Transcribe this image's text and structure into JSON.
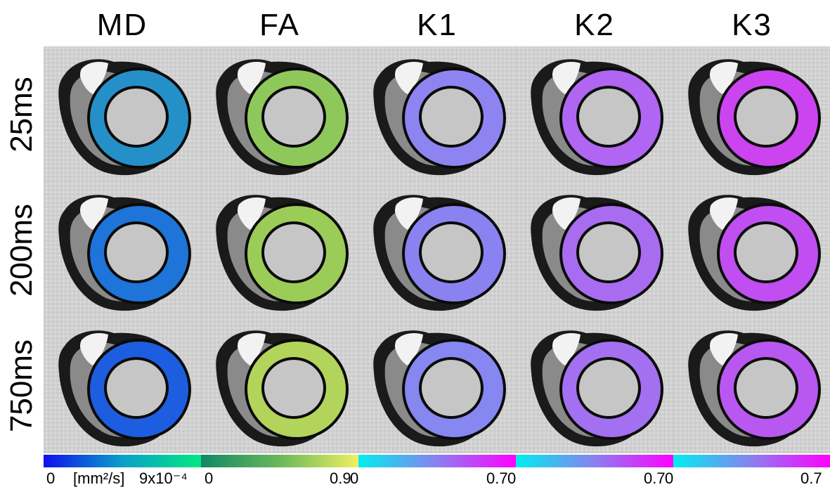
{
  "columns": [
    {
      "title": "MD"
    },
    {
      "title": "FA"
    },
    {
      "title": "K1"
    },
    {
      "title": "K2"
    },
    {
      "title": "K3"
    }
  ],
  "rows": [
    {
      "label": "25ms"
    },
    {
      "label": "200ms"
    },
    {
      "label": "750ms"
    }
  ],
  "colorbars": [
    {
      "min_label": "0",
      "unit_label": "[mm²/s]",
      "max_label": "9x10⁻⁴",
      "colors": [
        "#1010ee",
        "#0aa0c8",
        "#00e882"
      ]
    },
    {
      "min_label": "0",
      "max_label": "0.9",
      "colors": [
        "#118866",
        "#6ab85a",
        "#f0f060"
      ]
    },
    {
      "min_label": "0",
      "max_label": "0.7",
      "colors": [
        "#00eeee",
        "#8a80f0",
        "#ff00ff"
      ]
    },
    {
      "min_label": "0",
      "max_label": "0.7",
      "colors": [
        "#00eeee",
        "#8a80f0",
        "#ff00ff"
      ]
    },
    {
      "min_label": "0",
      "max_label": "0.7",
      "colors": [
        "#00eeee",
        "#8a80f0",
        "#ff00ff"
      ]
    }
  ],
  "ring_colors": [
    [
      "#2590c8",
      "#8fc85a",
      "#8d84f2",
      "#b066f2",
      "#cc44f0"
    ],
    [
      "#1e74d8",
      "#9ccc58",
      "#8a82f0",
      "#a86cf0",
      "#c04ef0"
    ],
    [
      "#1d5ee0",
      "#b2d45a",
      "#8687f0",
      "#a270f0",
      "#b858f0"
    ]
  ]
}
